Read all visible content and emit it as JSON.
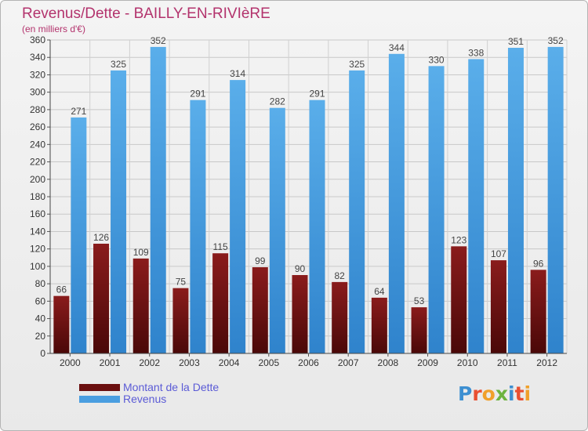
{
  "header": {
    "title": "Revenus/Dette - BAILLY-EN-RIVIèRE",
    "subtitle": "(en milliers d'€)"
  },
  "legend": {
    "items": [
      {
        "label": "Montant de la Dette",
        "color": "#7a1616"
      },
      {
        "label": "Revenus",
        "color": "#4a9ee0"
      }
    ]
  },
  "logo": {
    "letters": [
      "P",
      "r",
      "o",
      "x",
      "i",
      "t",
      "i"
    ]
  },
  "colors": {
    "title": "#b3336d",
    "legend_text": "#5b5bd6",
    "debt": "#7a1616",
    "revenue": "#4a9ee0"
  },
  "chart_data": {
    "type": "bar",
    "categories": [
      "2000",
      "2001",
      "2002",
      "2003",
      "2004",
      "2005",
      "2006",
      "2007",
      "2008",
      "2009",
      "2010",
      "2011",
      "2012"
    ],
    "series": [
      {
        "name": "Montant de la Dette",
        "values": [
          66,
          126,
          109,
          75,
          115,
          99,
          90,
          82,
          64,
          53,
          123,
          107,
          96
        ]
      },
      {
        "name": "Revenus",
        "values": [
          271,
          325,
          352,
          291,
          314,
          282,
          291,
          325,
          344,
          330,
          338,
          351,
          352
        ]
      }
    ],
    "yticks": [
      0,
      20,
      40,
      60,
      80,
      100,
      120,
      140,
      160,
      180,
      200,
      220,
      240,
      260,
      280,
      300,
      320,
      340,
      360
    ],
    "ylim": [
      0,
      360
    ],
    "grid": true,
    "legend_position": "bottom-left"
  }
}
